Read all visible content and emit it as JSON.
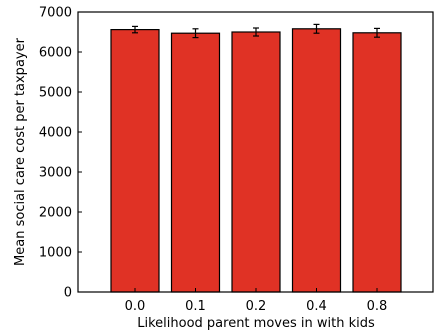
{
  "chart_data": {
    "type": "bar",
    "title": "",
    "xlabel": "Likelihood parent moves in with kids",
    "ylabel": "Mean social care cost per taxpayer",
    "categories": [
      "0.0",
      "0.1",
      "0.2",
      "0.4",
      "0.8"
    ],
    "values": [
      6560,
      6470,
      6500,
      6580,
      6480
    ],
    "error_bars": [
      80,
      110,
      100,
      110,
      110
    ],
    "ylim": [
      0,
      7000
    ],
    "yticks": [
      0,
      1000,
      2000,
      3000,
      4000,
      5000,
      6000,
      7000
    ],
    "grid": false,
    "legend": "none",
    "bar_color": "#e03225",
    "edge_color": "#000000"
  }
}
